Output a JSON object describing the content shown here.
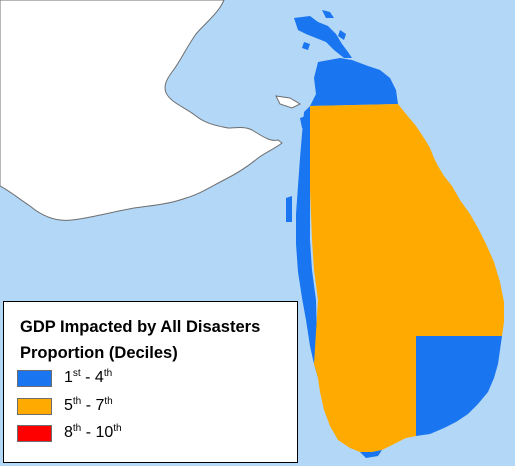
{
  "legend": {
    "title": "GDP Impacted by All Disasters",
    "subtitle": "Proportion (Deciles)",
    "items": [
      {
        "from_num": "1",
        "from_suf": "st",
        "sep": " - ",
        "to_num": "4",
        "to_suf": "th",
        "color": "#1975f0"
      },
      {
        "from_num": "5",
        "from_suf": "th",
        "sep": " - ",
        "to_num": "7",
        "to_suf": "th",
        "color": "#ffaa00"
      },
      {
        "from_num": "8",
        "from_suf": "th",
        "sep": " - ",
        "to_num": "10",
        "to_suf": "th",
        "color": "#ff0000"
      }
    ]
  },
  "colors": {
    "water": "#b3d7f7",
    "mainland": "#ffffff",
    "coast_outline": "#6e6e6e",
    "low": "#1975f0",
    "mid": "#ffaa00",
    "high": "#ff0000"
  }
}
